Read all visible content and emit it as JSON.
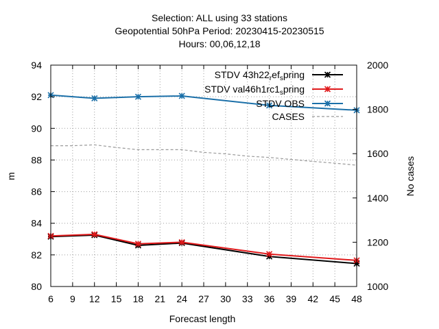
{
  "chart_data": {
    "type": "line",
    "title_lines": [
      "Selection: ALL using    33 stations",
      "Geopotential 50hPa   Period: 20230415-20230515",
      "Hours:  00,06,12,18"
    ],
    "xlabel": "Forecast length",
    "ylabel": "m",
    "y2label": "No cases",
    "xlim": [
      6,
      48
    ],
    "x_ticks": [
      6,
      9,
      12,
      15,
      18,
      21,
      24,
      27,
      30,
      33,
      36,
      39,
      42,
      45,
      48
    ],
    "ylim": [
      80,
      94
    ],
    "y_ticks": [
      80,
      82,
      84,
      86,
      88,
      90,
      92,
      94
    ],
    "y2lim": [
      1000,
      2000
    ],
    "y2_ticks": [
      1000,
      1200,
      1400,
      1600,
      1800,
      2000
    ],
    "grid": true,
    "legend_position": "top-right",
    "series": [
      {
        "name": "STDV 43h22 ref_spring",
        "legend_parts": [
          "STDV 43h22",
          "r",
          "ef",
          "s",
          "pring"
        ],
        "color": "#000000",
        "axis": "y",
        "marker": "star",
        "x": [
          6,
          12,
          18,
          24,
          36,
          48
        ],
        "values": [
          83.15,
          83.25,
          82.6,
          82.75,
          81.9,
          81.45
        ]
      },
      {
        "name": "STDV val46h1rc1_spring",
        "legend_parts": [
          "STDV val46h1rc1",
          "s",
          "pring"
        ],
        "color": "#e0191b",
        "axis": "y",
        "marker": "star",
        "x": [
          6,
          12,
          18,
          24,
          36,
          48
        ],
        "values": [
          83.2,
          83.3,
          82.7,
          82.8,
          82.05,
          81.65
        ]
      },
      {
        "name": "STDV OBS",
        "color": "#1a6fa8",
        "axis": "y",
        "marker": "star",
        "x": [
          6,
          12,
          18,
          24,
          36,
          48
        ],
        "values": [
          92.1,
          91.9,
          92.0,
          92.05,
          91.45,
          91.15
        ]
      },
      {
        "name": "CASES",
        "color": "#999999",
        "axis": "y2",
        "dashed": true,
        "x": [
          6,
          9,
          12,
          15,
          18,
          21,
          24,
          27,
          30,
          33,
          36,
          39,
          42,
          45,
          48
        ],
        "values": [
          1636,
          1636,
          1640,
          1628,
          1618,
          1618,
          1618,
          1606,
          1599,
          1589,
          1583,
          1574,
          1565,
          1557,
          1548
        ]
      }
    ]
  }
}
